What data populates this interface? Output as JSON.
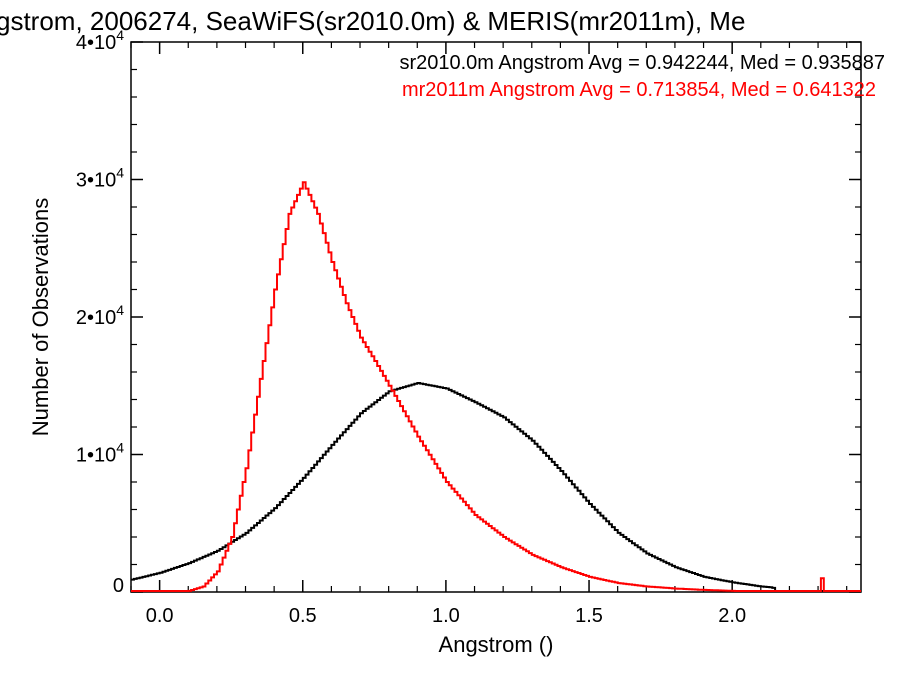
{
  "chart_data": {
    "type": "line",
    "title": "gstrom, 2006274, SeaWiFS(sr2010.0m) & MERIS(mr2011m), Me",
    "xlabel": "Angstrom ()",
    "ylabel": "Number of Observations",
    "xlim": [
      -0.1,
      2.45
    ],
    "ylim": [
      0,
      40000
    ],
    "x_ticks": [
      {
        "value": 0.0,
        "label": "0.0"
      },
      {
        "value": 0.5,
        "label": "0.5"
      },
      {
        "value": 1.0,
        "label": "1.0"
      },
      {
        "value": 1.5,
        "label": "1.5"
      },
      {
        "value": 2.0,
        "label": "2.0"
      }
    ],
    "y_ticks": [
      {
        "value": 0,
        "label": "0",
        "exp": ""
      },
      {
        "value": 10000,
        "label": "1•10",
        "exp": "4"
      },
      {
        "value": 20000,
        "label": "2•10",
        "exp": "4"
      },
      {
        "value": 30000,
        "label": "3•10",
        "exp": "4"
      },
      {
        "value": 40000,
        "label": "4•10",
        "exp": "4"
      }
    ],
    "grid": false,
    "legend_position": "top-right",
    "series": [
      {
        "name": "sr2010.0m Angstrom Avg = 0.942244, Med = 0.935887",
        "color": "#000000",
        "x": [
          -0.1,
          0.0,
          0.1,
          0.2,
          0.3,
          0.4,
          0.5,
          0.6,
          0.7,
          0.8,
          0.9,
          1.0,
          1.1,
          1.2,
          1.3,
          1.4,
          1.5,
          1.6,
          1.7,
          1.8,
          1.9,
          2.0,
          2.1,
          2.13,
          2.135,
          2.14,
          2.145,
          2.2,
          2.3,
          2.45
        ],
        "y": [
          900,
          1400,
          2100,
          3000,
          4300,
          6100,
          8300,
          10700,
          13000,
          14600,
          15200,
          14800,
          13800,
          12700,
          11000,
          8800,
          6400,
          4300,
          2800,
          1800,
          1100,
          700,
          400,
          350,
          1800,
          300,
          50,
          20,
          5,
          0
        ]
      },
      {
        "name": "mr2011m Angstrom Avg = 0.713854, Med = 0.641322",
        "color": "#ff0000",
        "x": [
          -0.1,
          0.05,
          0.1,
          0.15,
          0.2,
          0.25,
          0.3,
          0.35,
          0.4,
          0.45,
          0.5,
          0.55,
          0.6,
          0.65,
          0.7,
          0.75,
          0.8,
          0.9,
          1.0,
          1.1,
          1.2,
          1.3,
          1.4,
          1.5,
          1.6,
          1.7,
          1.8,
          1.9,
          2.0,
          2.1,
          2.2,
          2.3,
          2.31,
          2.32,
          2.33,
          2.45
        ],
        "y": [
          0,
          0,
          80,
          400,
          1500,
          4000,
          9000,
          15500,
          22000,
          27500,
          29800,
          27500,
          24000,
          21000,
          18500,
          16800,
          15000,
          11300,
          8000,
          5600,
          4000,
          2700,
          1800,
          1100,
          650,
          400,
          250,
          150,
          80,
          40,
          20,
          10,
          1000,
          30,
          5,
          0
        ]
      }
    ]
  }
}
